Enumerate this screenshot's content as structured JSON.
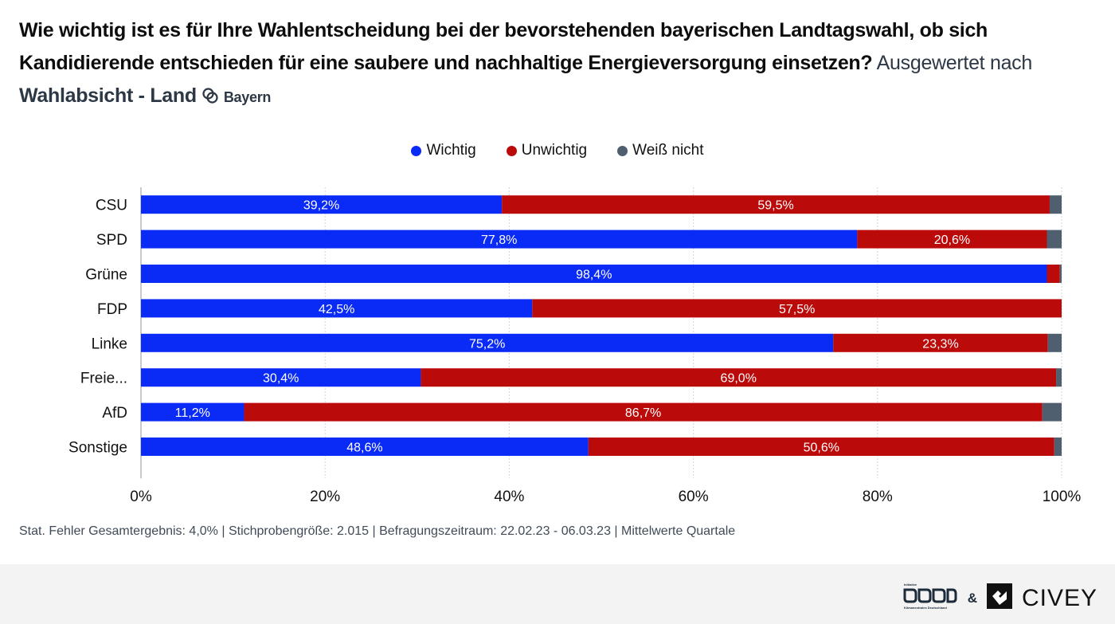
{
  "header": {
    "question": "Wie wichtig ist es für Ihre Wahlentscheidung bei der bevorstehenden bayerischen Landtagswahl, ob sich Kandidierende entschieden für eine saubere und nachhaltige Energieversorgung einsetzen?",
    "evaluated_prefix": "Ausgewertet nach",
    "dimension": "Wahlabsicht - Land",
    "region_icon": "overlap-icon",
    "region": "Bayern"
  },
  "footnote": "Stat. Fehler Gesamtergebnis: 4,0% | Stichprobengröße: 2.015 | Befragungszeitraum: 22.02.23 - 06.03.23 | Mittelwerte Quartale",
  "branding": {
    "partner_logo": "Initiative Klimaneutrales Deutschland",
    "ampersand": "&",
    "brand": "CIVEY"
  },
  "chart_data": {
    "type": "bar",
    "orientation": "horizontal",
    "stacked": true,
    "title": "Wie wichtig ist es für Ihre Wahlentscheidung bei der bevorstehenden bayerischen Landtagswahl, ob sich Kandidierende entschieden für eine saubere und nachhaltige Energieversorgung einsetzen?",
    "xlabel": "",
    "ylabel": "",
    "categories": [
      "CSU",
      "SPD",
      "Grüne",
      "FDP",
      "Linke",
      "Freie...",
      "AfD",
      "Sonstige"
    ],
    "series": [
      {
        "name": "Wichtig",
        "color": "#0a2af5",
        "values": [
          39.2,
          77.8,
          98.4,
          42.5,
          75.2,
          30.4,
          11.2,
          48.6
        ],
        "labels": [
          "39,2%",
          "77,8%",
          "98,4%",
          "42,5%",
          "75,2%",
          "30,4%",
          "11,2%",
          "48,6%"
        ]
      },
      {
        "name": "Unwichtig",
        "color": "#bb0a0a",
        "values": [
          59.5,
          20.6,
          1.4,
          57.5,
          23.3,
          69.0,
          86.7,
          50.6
        ],
        "labels": [
          "59,5%",
          "20,6%",
          "",
          "57,5%",
          "23,3%",
          "69,0%",
          "86,7%",
          "50,6%"
        ]
      },
      {
        "name": "Weiß nicht",
        "color": "#4f5f70",
        "values": [
          1.3,
          1.6,
          0.2,
          0.0,
          1.5,
          0.6,
          2.1,
          0.8
        ],
        "labels": [
          "",
          "",
          "",
          "",
          "",
          "",
          "",
          ""
        ]
      }
    ],
    "xlim": [
      0,
      100
    ],
    "xticks": [
      0,
      20,
      40,
      60,
      80,
      100
    ],
    "xtick_labels": [
      "0%",
      "20%",
      "40%",
      "60%",
      "80%",
      "100%"
    ],
    "grid": true,
    "legend": "top-center"
  }
}
